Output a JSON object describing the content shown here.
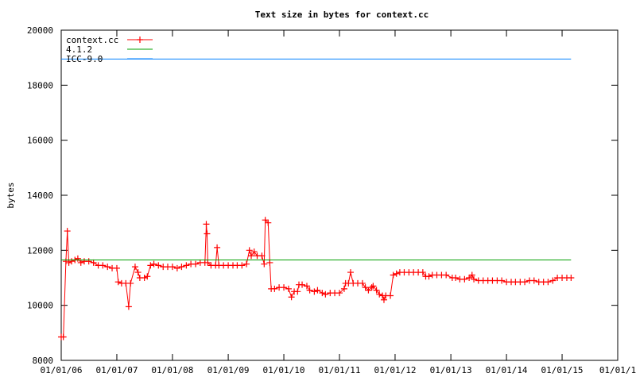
{
  "chart_data": {
    "type": "line",
    "title": "Text size in bytes for context.cc",
    "xlabel": "",
    "ylabel": "bytes",
    "x_tick_labels": [
      "01/01/06",
      "01/01/07",
      "01/01/08",
      "01/01/09",
      "01/01/10",
      "01/01/11",
      "01/01/12",
      "01/01/13",
      "01/01/14",
      "01/01/15",
      "01/01/1"
    ],
    "ylim": [
      8000,
      20000
    ],
    "y_ticks": [
      8000,
      10000,
      12000,
      14000,
      16000,
      18000,
      20000
    ],
    "grid": false,
    "legend_position": "top-left",
    "series": [
      {
        "name": "context.cc",
        "color": "#ff0000",
        "marker": "plus",
        "points": [
          [
            "2006-01-01",
            8850
          ],
          [
            "2006-01-15",
            8850
          ],
          [
            "2006-02-01",
            11600
          ],
          [
            "2006-02-10",
            12700
          ],
          [
            "2006-02-20",
            11550
          ],
          [
            "2006-03-10",
            11600
          ],
          [
            "2006-04-01",
            11650
          ],
          [
            "2006-04-20",
            11700
          ],
          [
            "2006-05-10",
            11550
          ],
          [
            "2006-06-01",
            11600
          ],
          [
            "2006-07-01",
            11600
          ],
          [
            "2006-08-01",
            11550
          ],
          [
            "2006-09-01",
            11450
          ],
          [
            "2006-10-01",
            11450
          ],
          [
            "2006-11-01",
            11400
          ],
          [
            "2006-12-01",
            11350
          ],
          [
            "2007-01-01",
            11350
          ],
          [
            "2007-01-10",
            10850
          ],
          [
            "2007-02-01",
            10800
          ],
          [
            "2007-03-01",
            10800
          ],
          [
            "2007-03-20",
            9950
          ],
          [
            "2007-04-01",
            10800
          ],
          [
            "2007-05-01",
            11400
          ],
          [
            "2007-05-20",
            11200
          ],
          [
            "2007-06-01",
            11000
          ],
          [
            "2007-07-01",
            11000
          ],
          [
            "2007-07-20",
            11050
          ],
          [
            "2007-08-10",
            11450
          ],
          [
            "2007-09-01",
            11500
          ],
          [
            "2007-10-01",
            11450
          ],
          [
            "2007-11-01",
            11400
          ],
          [
            "2007-12-01",
            11400
          ],
          [
            "2008-01-01",
            11400
          ],
          [
            "2008-02-01",
            11350
          ],
          [
            "2008-03-01",
            11400
          ],
          [
            "2008-04-01",
            11450
          ],
          [
            "2008-05-01",
            11500
          ],
          [
            "2008-06-01",
            11500
          ],
          [
            "2008-07-01",
            11550
          ],
          [
            "2008-08-01",
            11550
          ],
          [
            "2008-08-10",
            12950
          ],
          [
            "2008-08-15",
            12600
          ],
          [
            "2008-08-20",
            11550
          ],
          [
            "2008-09-10",
            11450
          ],
          [
            "2008-10-10",
            11450
          ],
          [
            "2008-10-20",
            12100
          ],
          [
            "2008-11-01",
            11450
          ],
          [
            "2008-12-01",
            11450
          ],
          [
            "2009-01-01",
            11450
          ],
          [
            "2009-02-01",
            11450
          ],
          [
            "2009-03-01",
            11450
          ],
          [
            "2009-04-01",
            11450
          ],
          [
            "2009-05-01",
            11500
          ],
          [
            "2009-05-20",
            12000
          ],
          [
            "2009-06-01",
            11800
          ],
          [
            "2009-06-20",
            11950
          ],
          [
            "2009-07-10",
            11800
          ],
          [
            "2009-08-10",
            11800
          ],
          [
            "2009-08-25",
            11500
          ],
          [
            "2009-09-01",
            13100
          ],
          [
            "2009-09-20",
            13000
          ],
          [
            "2009-10-01",
            11550
          ],
          [
            "2009-10-10",
            10600
          ],
          [
            "2009-11-01",
            10600
          ],
          [
            "2009-12-01",
            10650
          ],
          [
            "2010-01-01",
            10650
          ],
          [
            "2010-02-01",
            10600
          ],
          [
            "2010-02-20",
            10300
          ],
          [
            "2010-03-10",
            10500
          ],
          [
            "2010-04-01",
            10500
          ],
          [
            "2010-04-10",
            10750
          ],
          [
            "2010-05-01",
            10750
          ],
          [
            "2010-06-01",
            10700
          ],
          [
            "2010-06-20",
            10550
          ],
          [
            "2010-07-20",
            10500
          ],
          [
            "2010-08-10",
            10550
          ],
          [
            "2010-09-10",
            10450
          ],
          [
            "2010-10-01",
            10400
          ],
          [
            "2010-11-01",
            10450
          ],
          [
            "2010-12-01",
            10450
          ],
          [
            "2011-01-01",
            10450
          ],
          [
            "2011-02-01",
            10600
          ],
          [
            "2011-02-10",
            10800
          ],
          [
            "2011-03-01",
            10800
          ],
          [
            "2011-03-15",
            11200
          ],
          [
            "2011-04-01",
            10800
          ],
          [
            "2011-05-01",
            10800
          ],
          [
            "2011-06-01",
            10800
          ],
          [
            "2011-06-20",
            10650
          ],
          [
            "2011-07-10",
            10550
          ],
          [
            "2011-08-01",
            10650
          ],
          [
            "2011-08-10",
            10700
          ],
          [
            "2011-09-01",
            10550
          ],
          [
            "2011-09-20",
            10400
          ],
          [
            "2011-10-10",
            10350
          ],
          [
            "2011-10-20",
            10200
          ],
          [
            "2011-11-01",
            10350
          ],
          [
            "2011-12-01",
            10350
          ],
          [
            "2011-12-20",
            11100
          ],
          [
            "2012-01-10",
            11150
          ],
          [
            "2012-02-01",
            11200
          ],
          [
            "2012-03-01",
            11200
          ],
          [
            "2012-04-01",
            11200
          ],
          [
            "2012-05-01",
            11200
          ],
          [
            "2012-06-01",
            11200
          ],
          [
            "2012-07-01",
            11200
          ],
          [
            "2012-07-20",
            11050
          ],
          [
            "2012-08-10",
            11050
          ],
          [
            "2012-09-01",
            11100
          ],
          [
            "2012-10-01",
            11100
          ],
          [
            "2012-11-01",
            11100
          ],
          [
            "2012-12-01",
            11100
          ],
          [
            "2013-01-10",
            11000
          ],
          [
            "2013-02-01",
            11000
          ],
          [
            "2013-03-01",
            10950
          ],
          [
            "2013-04-01",
            10950
          ],
          [
            "2013-05-01",
            11000
          ],
          [
            "2013-05-20",
            11100
          ],
          [
            "2013-06-01",
            10950
          ],
          [
            "2013-07-01",
            10900
          ],
          [
            "2013-08-01",
            10900
          ],
          [
            "2013-09-01",
            10900
          ],
          [
            "2013-10-01",
            10900
          ],
          [
            "2013-11-01",
            10900
          ],
          [
            "2013-12-01",
            10900
          ],
          [
            "2014-01-01",
            10850
          ],
          [
            "2014-02-01",
            10850
          ],
          [
            "2014-03-01",
            10850
          ],
          [
            "2014-04-01",
            10850
          ],
          [
            "2014-05-01",
            10850
          ],
          [
            "2014-06-01",
            10900
          ],
          [
            "2014-07-01",
            10900
          ],
          [
            "2014-08-01",
            10850
          ],
          [
            "2014-09-01",
            10850
          ],
          [
            "2014-10-01",
            10850
          ],
          [
            "2014-11-01",
            10900
          ],
          [
            "2014-12-01",
            11000
          ],
          [
            "2015-01-01",
            11000
          ],
          [
            "2015-02-01",
            11000
          ],
          [
            "2015-03-01",
            11000
          ]
        ]
      },
      {
        "name": "4.1.2",
        "color": "#00a000",
        "marker": "none",
        "points": [
          [
            "2006-01-01",
            11650
          ],
          [
            "2015-03-01",
            11650
          ]
        ]
      },
      {
        "name": "ICC-9.0",
        "color": "#0080ff",
        "marker": "none",
        "points": [
          [
            "2006-01-01",
            18950
          ],
          [
            "2015-03-01",
            18950
          ]
        ]
      }
    ]
  }
}
